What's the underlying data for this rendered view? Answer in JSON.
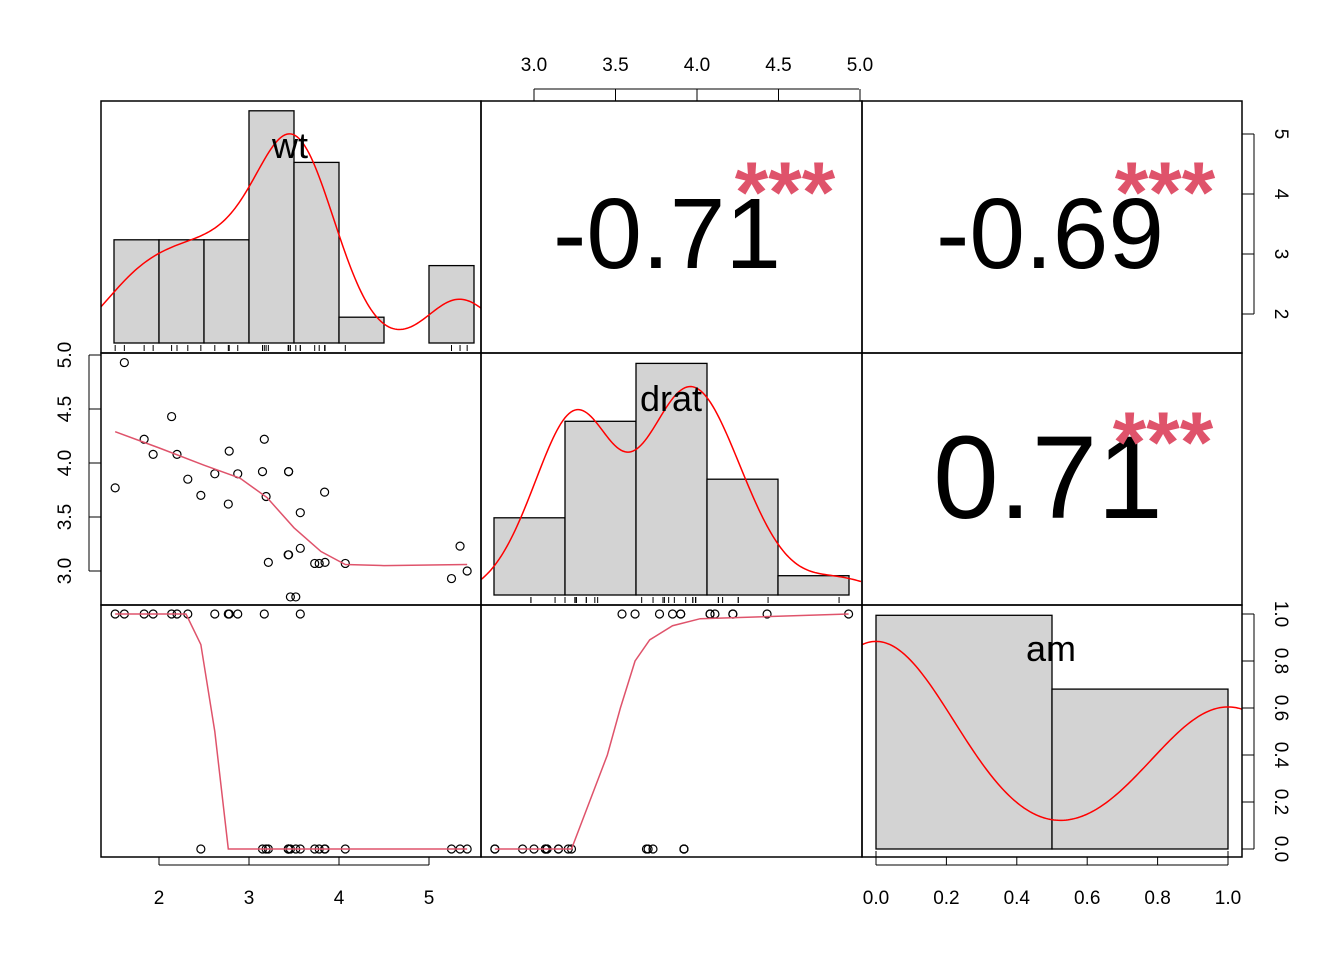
{
  "chart_data": {
    "type": "scatter-matrix",
    "variables": [
      "wt",
      "drat",
      "am"
    ],
    "colors": {
      "density": "#FF0000",
      "smooth": "#DF536B",
      "stars": "#DF536B",
      "bars": "#D3D3D3"
    },
    "data": {
      "wt": [
        2.62,
        2.875,
        2.32,
        3.215,
        3.44,
        3.46,
        3.57,
        3.19,
        3.15,
        3.44,
        3.44,
        4.07,
        3.73,
        3.78,
        5.25,
        5.424,
        5.345,
        2.2,
        1.615,
        1.835,
        2.465,
        3.52,
        3.435,
        3.84,
        3.845,
        1.935,
        2.14,
        1.513,
        3.17,
        2.77,
        3.57,
        2.78
      ],
      "drat": [
        3.9,
        3.9,
        3.85,
        3.08,
        3.15,
        2.76,
        3.21,
        3.69,
        3.92,
        3.92,
        3.92,
        3.07,
        3.07,
        3.07,
        2.93,
        3.0,
        3.23,
        4.08,
        4.93,
        4.22,
        3.7,
        2.76,
        3.15,
        3.73,
        3.08,
        4.08,
        4.43,
        3.77,
        4.22,
        3.62,
        3.54,
        4.11
      ],
      "am": [
        1,
        1,
        1,
        0,
        0,
        0,
        0,
        0,
        0,
        0,
        0,
        0,
        0,
        0,
        0,
        0,
        0,
        1,
        1,
        1,
        0,
        0,
        0,
        0,
        0,
        1,
        1,
        1,
        1,
        1,
        1,
        1
      ]
    },
    "histograms": {
      "wt": {
        "breaks": [
          1.5,
          2.0,
          2.5,
          3.0,
          3.5,
          4.0,
          4.5,
          5.0,
          5.5
        ],
        "counts": [
          4,
          4,
          4,
          9,
          7,
          1,
          0,
          3
        ]
      },
      "drat": {
        "breaks": [
          2.5,
          3.0,
          3.5,
          4.0,
          4.5,
          5.0
        ],
        "counts": [
          4,
          9,
          12,
          6,
          1
        ]
      },
      "am": {
        "breaks": [
          0,
          0.5,
          1.0
        ],
        "counts": [
          19,
          13
        ]
      }
    },
    "correlations": [
      {
        "pair": [
          "wt",
          "drat"
        ],
        "label": "-0.71",
        "stars": "***"
      },
      {
        "pair": [
          "wt",
          "am"
        ],
        "label": "-0.69",
        "stars": "***"
      },
      {
        "pair": [
          "drat",
          "am"
        ],
        "label": "0.71",
        "stars": "***"
      }
    ],
    "smooth": {
      "wt_drat": [
        [
          1.513,
          4.29
        ],
        [
          2.0,
          4.14
        ],
        [
          2.5,
          3.98
        ],
        [
          2.9,
          3.86
        ],
        [
          3.2,
          3.68
        ],
        [
          3.5,
          3.4
        ],
        [
          3.8,
          3.18
        ],
        [
          4.07,
          3.06
        ],
        [
          4.5,
          3.05
        ],
        [
          5.424,
          3.06
        ]
      ],
      "wt_am": [
        [
          1.513,
          1
        ],
        [
          2.3,
          1
        ],
        [
          2.465,
          0.87
        ],
        [
          2.62,
          0.5
        ],
        [
          2.77,
          0
        ],
        [
          5.424,
          0
        ]
      ],
      "drat_am": [
        [
          2.76,
          0
        ],
        [
          3.23,
          0
        ],
        [
          3.45,
          0.4
        ],
        [
          3.53,
          0.6
        ],
        [
          3.62,
          0.8
        ],
        [
          3.71,
          0.89
        ],
        [
          3.85,
          0.95
        ],
        [
          4.02,
          0.98
        ],
        [
          4.93,
          1
        ]
      ]
    },
    "axes": {
      "wt_ticks": [
        "2",
        "3",
        "4",
        "5"
      ],
      "drat_ticks": [
        "3.0",
        "3.5",
        "4.0",
        "4.5",
        "5.0"
      ],
      "am_ticks": [
        "0.0",
        "0.2",
        "0.4",
        "0.6",
        "0.8",
        "1.0"
      ]
    }
  }
}
